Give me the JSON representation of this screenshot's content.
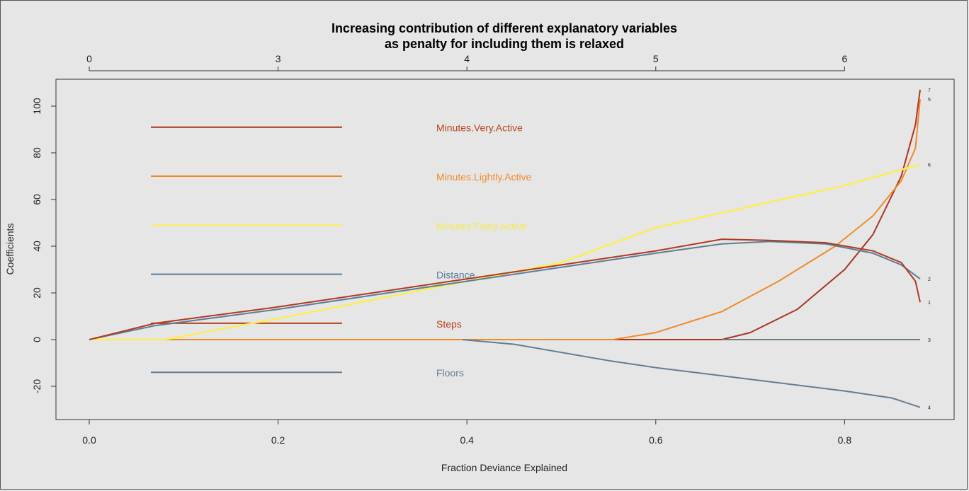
{
  "chart_data": {
    "type": "line",
    "title_line1": "Increasing contribution of different explanatory variables",
    "title_line2": "as penalty for including them is relaxed",
    "xlabel": "Fraction Deviance Explained",
    "ylabel": "Coefficients",
    "xlim": [
      0.0,
      0.88
    ],
    "ylim": [
      -30,
      110
    ],
    "x_ticks": [
      "0.0",
      "0.2",
      "0.4",
      "0.6",
      "0.8"
    ],
    "x_tick_values": [
      0.0,
      0.2,
      0.4,
      0.6,
      0.8
    ],
    "y_ticks": [
      "-20",
      "0",
      "20",
      "40",
      "60",
      "80",
      "100"
    ],
    "y_tick_values": [
      -20,
      0,
      20,
      40,
      60,
      80,
      100
    ],
    "top_ticks": [
      "0",
      "3",
      "4",
      "5",
      "6"
    ],
    "top_tick_values": [
      0.0,
      0.2,
      0.4,
      0.6,
      0.8
    ],
    "grid": false,
    "legend_placement": "left",
    "zero_line_color": "#b5441b",
    "series": [
      {
        "name": "Minutes.Very.Active",
        "end_label": "7",
        "color": "#a8351f",
        "points": [
          [
            0,
            0
          ],
          [
            0.67,
            0
          ],
          [
            0.7,
            3
          ],
          [
            0.75,
            13
          ],
          [
            0.8,
            30
          ],
          [
            0.83,
            45
          ],
          [
            0.86,
            70
          ],
          [
            0.875,
            92
          ],
          [
            0.88,
            107
          ]
        ]
      },
      {
        "name": "Minutes.Lightly.Active",
        "end_label": "5",
        "color": "#f08a28",
        "points": [
          [
            0,
            0
          ],
          [
            0.555,
            0
          ],
          [
            0.6,
            3
          ],
          [
            0.67,
            12
          ],
          [
            0.73,
            25
          ],
          [
            0.79,
            40
          ],
          [
            0.83,
            53
          ],
          [
            0.86,
            68
          ],
          [
            0.875,
            82
          ],
          [
            0.88,
            103
          ]
        ]
      },
      {
        "name": "Minutes.Fairly.Active",
        "end_label": "6",
        "color": "#fbee55",
        "points": [
          [
            0,
            0
          ],
          [
            0.08,
            0
          ],
          [
            0.2,
            9
          ],
          [
            0.3,
            17
          ],
          [
            0.4,
            25
          ],
          [
            0.5,
            33
          ],
          [
            0.6,
            48
          ],
          [
            0.7,
            57
          ],
          [
            0.8,
            66
          ],
          [
            0.88,
            75
          ]
        ]
      },
      {
        "name": "Distance",
        "end_label": "2",
        "color": "#5a7d99",
        "points": [
          [
            0,
            0
          ],
          [
            0.07,
            6
          ],
          [
            0.2,
            13
          ],
          [
            0.3,
            19
          ],
          [
            0.4,
            25
          ],
          [
            0.5,
            31
          ],
          [
            0.6,
            37
          ],
          [
            0.67,
            41
          ],
          [
            0.72,
            42
          ],
          [
            0.78,
            41
          ],
          [
            0.83,
            37
          ],
          [
            0.86,
            32
          ],
          [
            0.88,
            26
          ]
        ]
      },
      {
        "name": "Steps",
        "end_label": "1",
        "color": "#b03a1f",
        "points": [
          [
            0,
            0
          ],
          [
            0.07,
            7
          ],
          [
            0.2,
            14
          ],
          [
            0.3,
            20
          ],
          [
            0.4,
            26
          ],
          [
            0.5,
            32
          ],
          [
            0.6,
            38
          ],
          [
            0.67,
            43
          ],
          [
            0.72,
            42.5
          ],
          [
            0.78,
            41.5
          ],
          [
            0.83,
            38
          ],
          [
            0.86,
            33
          ],
          [
            0.875,
            25
          ],
          [
            0.88,
            16
          ]
        ]
      },
      {
        "name": "Floors",
        "end_label": "4",
        "color": "#647d93",
        "points": [
          [
            0.395,
            0
          ],
          [
            0.45,
            -2
          ],
          [
            0.55,
            -9
          ],
          [
            0.6,
            -12
          ],
          [
            0.7,
            -17
          ],
          [
            0.8,
            -22
          ],
          [
            0.85,
            -25
          ],
          [
            0.88,
            -29
          ]
        ]
      },
      {
        "name": "",
        "end_label": "3",
        "color": "#6f7d86",
        "points": [
          [
            0.67,
            0
          ],
          [
            0.88,
            0
          ]
        ]
      }
    ],
    "legend": [
      {
        "label": "Minutes.Very.Active",
        "color": "#a8351f",
        "line_color": "#a8351f",
        "text_color": "#b5441b",
        "y": 91
      },
      {
        "label": "Minutes.Lightly.Active",
        "color": "#f08a28",
        "line_color": "#f08a28",
        "text_color": "#f08a28",
        "y": 70
      },
      {
        "label": "Minutes.Fairly.Active",
        "color": "#fbee55",
        "line_color": "#fbee55",
        "text_color": "#f6ea4a",
        "y": 49
      },
      {
        "label": "Distance",
        "color": "#5a7d99",
        "line_color": "#5a7d99",
        "text_color": "#5a7d99",
        "y": 28
      },
      {
        "label": "Steps",
        "color": "#b5441b",
        "line_color": "#b5441b",
        "text_color": "#b5441b",
        "y": 7
      },
      {
        "label": "Floors",
        "color": "#647d93",
        "line_color": "#647d93",
        "text_color": "#647d93",
        "y": -14
      }
    ]
  }
}
